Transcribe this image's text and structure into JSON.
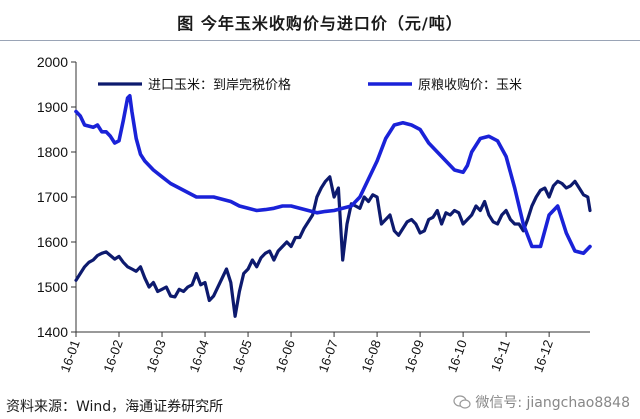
{
  "figure_title": "图    今年玉米收购价与进口价（元/吨）",
  "source_note": "资料来源：Wind，海通证券研究所",
  "watermark": "微信号: jiangchao8848",
  "colors": {
    "series1": "#0d1a6e",
    "series2": "#1a22d8",
    "axis": "#333333"
  },
  "chart_data": {
    "type": "line",
    "title": "今年玉米收购价与进口价（元/吨）",
    "xlabel": "",
    "ylabel": "",
    "ylim": [
      1400,
      2000
    ],
    "yticks": [
      1400,
      1500,
      1600,
      1700,
      1800,
      1900,
      2000
    ],
    "xticks": [
      "16-01",
      "16-02",
      "16-03",
      "16-04",
      "16-05",
      "16-06",
      "16-07",
      "16-08",
      "16-09",
      "16-10",
      "16-11",
      "16-12"
    ],
    "xlim": [
      0,
      11.95
    ],
    "grid": false,
    "legend": "top-inside",
    "series": [
      {
        "name": "进口玉米：到岸完税价格",
        "color": "#0d1a6e",
        "x": [
          0,
          0.1,
          0.2,
          0.3,
          0.4,
          0.5,
          0.6,
          0.7,
          0.8,
          0.9,
          1.0,
          1.1,
          1.2,
          1.3,
          1.4,
          1.5,
          1.6,
          1.7,
          1.8,
          1.9,
          2.0,
          2.1,
          2.2,
          2.3,
          2.4,
          2.5,
          2.6,
          2.7,
          2.8,
          2.9,
          3.0,
          3.1,
          3.2,
          3.3,
          3.4,
          3.5,
          3.6,
          3.7,
          3.8,
          3.9,
          4.0,
          4.1,
          4.2,
          4.3,
          4.4,
          4.5,
          4.6,
          4.7,
          4.8,
          4.9,
          5.0,
          5.1,
          5.2,
          5.3,
          5.4,
          5.5,
          5.6,
          5.7,
          5.8,
          5.9,
          6.0,
          6.1,
          6.2,
          6.3,
          6.4,
          6.5,
          6.6,
          6.7,
          6.8,
          6.9,
          7.0,
          7.1,
          7.2,
          7.3,
          7.4,
          7.5,
          7.6,
          7.7,
          7.8,
          7.9,
          8.0,
          8.1,
          8.2,
          8.3,
          8.4,
          8.5,
          8.6,
          8.7,
          8.8,
          8.9,
          9.0,
          9.1,
          9.2,
          9.3,
          9.4,
          9.5,
          9.6,
          9.7,
          9.8,
          9.9,
          10.0,
          10.1,
          10.2,
          10.3,
          10.4,
          10.5,
          10.6,
          10.7,
          10.8,
          10.9,
          11.0,
          11.1,
          11.2,
          11.3,
          11.4,
          11.5,
          11.6,
          11.7,
          11.8,
          11.9,
          11.95
        ],
        "y": [
          1515,
          1530,
          1545,
          1555,
          1560,
          1570,
          1575,
          1578,
          1570,
          1562,
          1568,
          1555,
          1545,
          1540,
          1535,
          1545,
          1520,
          1500,
          1510,
          1490,
          1495,
          1500,
          1480,
          1478,
          1495,
          1490,
          1500,
          1505,
          1530,
          1505,
          1510,
          1470,
          1480,
          1500,
          1520,
          1540,
          1510,
          1435,
          1490,
          1530,
          1540,
          1560,
          1545,
          1565,
          1575,
          1580,
          1560,
          1580,
          1590,
          1600,
          1590,
          1610,
          1610,
          1630,
          1645,
          1660,
          1700,
          1720,
          1735,
          1745,
          1700,
          1720,
          1560,
          1640,
          1685,
          1680,
          1675,
          1700,
          1690,
          1705,
          1700,
          1640,
          1650,
          1660,
          1625,
          1615,
          1630,
          1645,
          1650,
          1640,
          1620,
          1625,
          1650,
          1655,
          1670,
          1640,
          1665,
          1660,
          1670,
          1665,
          1640,
          1650,
          1660,
          1680,
          1670,
          1690,
          1660,
          1645,
          1640,
          1660,
          1670,
          1650,
          1640,
          1640,
          1625,
          1650,
          1680,
          1700,
          1715,
          1720,
          1700,
          1725,
          1735,
          1730,
          1720,
          1725,
          1735,
          1720,
          1705,
          1700,
          1670
        ]
      },
      {
        "name": "原粮收购价：玉米",
        "color": "#1a22d8",
        "x": [
          0,
          0.1,
          0.2,
          0.4,
          0.5,
          0.6,
          0.7,
          0.8,
          0.9,
          1.0,
          1.1,
          1.2,
          1.25,
          1.3,
          1.4,
          1.5,
          1.6,
          1.8,
          2.0,
          2.2,
          2.4,
          2.6,
          2.8,
          3.0,
          3.2,
          3.4,
          3.6,
          3.8,
          4.0,
          4.2,
          4.4,
          4.6,
          4.8,
          5.0,
          5.2,
          5.4,
          5.6,
          5.8,
          6.0,
          6.2,
          6.4,
          6.6,
          6.8,
          7.0,
          7.2,
          7.4,
          7.6,
          7.8,
          8.0,
          8.2,
          8.4,
          8.6,
          8.8,
          9.0,
          9.1,
          9.2,
          9.4,
          9.6,
          9.8,
          10.0,
          10.2,
          10.4,
          10.6,
          10.8,
          11.0,
          11.2,
          11.4,
          11.6,
          11.8,
          11.95
        ],
        "y": [
          1890,
          1880,
          1860,
          1855,
          1860,
          1845,
          1845,
          1835,
          1820,
          1825,
          1870,
          1920,
          1925,
          1890,
          1830,
          1795,
          1780,
          1760,
          1745,
          1730,
          1720,
          1710,
          1700,
          1700,
          1700,
          1695,
          1690,
          1680,
          1675,
          1670,
          1672,
          1675,
          1680,
          1680,
          1675,
          1670,
          1665,
          1668,
          1670,
          1675,
          1680,
          1700,
          1740,
          1780,
          1830,
          1860,
          1865,
          1860,
          1850,
          1820,
          1800,
          1780,
          1760,
          1755,
          1770,
          1800,
          1830,
          1835,
          1825,
          1790,
          1720,
          1640,
          1590,
          1590,
          1660,
          1680,
          1620,
          1580,
          1575,
          1590
        ]
      }
    ]
  }
}
